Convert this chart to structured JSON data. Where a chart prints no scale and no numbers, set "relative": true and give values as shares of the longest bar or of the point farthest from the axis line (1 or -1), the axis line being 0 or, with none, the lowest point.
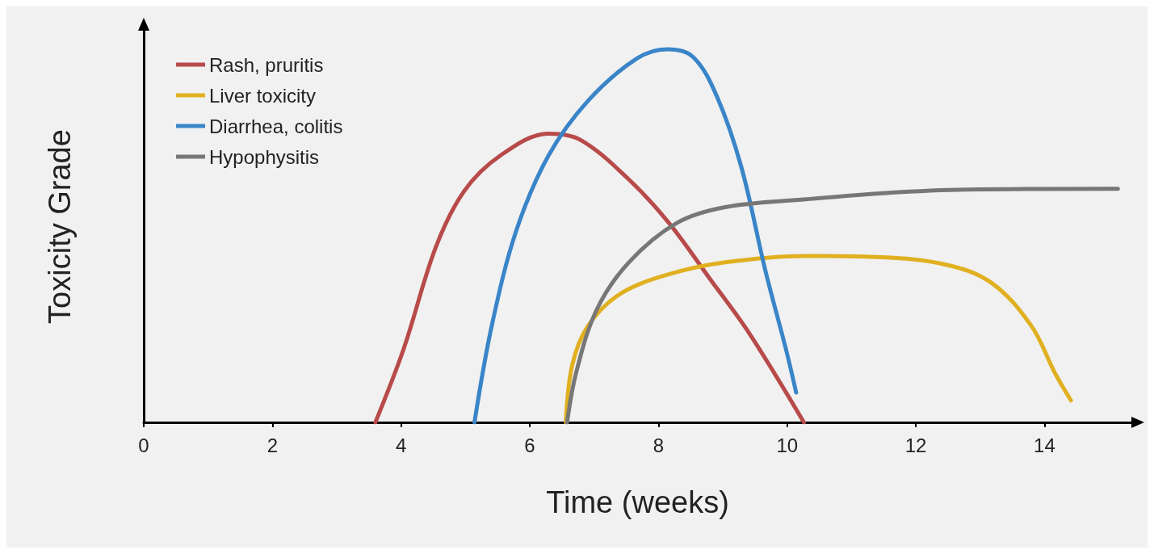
{
  "chart_data": {
    "type": "line",
    "relative": true,
    "xlabel": "Time (weeks)",
    "ylabel": "Toxicity Grade",
    "xlim": [
      0,
      15.35
    ],
    "xticks": [
      0,
      2,
      4,
      6,
      8,
      10,
      12,
      14
    ],
    "grid": false,
    "legend": "top left",
    "marker": "none",
    "line_style": "solid",
    "series": [
      {
        "name": "Rash, pruritis",
        "color": "#b84a4a",
        "x": [
          3.6,
          4.04,
          4.54,
          4.98,
          5.54,
          6.29,
          6.79,
          7.54,
          8.16,
          8.79,
          9.41,
          10.26
        ],
        "values": [
          0,
          0.197,
          0.47,
          0.62,
          0.715,
          0.774,
          0.757,
          0.651,
          0.535,
          0.387,
          0.239,
          0
        ]
      },
      {
        "name": "Liver toxicity",
        "color": "#e0b020",
        "x": [
          6.56,
          6.66,
          6.91,
          7.41,
          8.16,
          9.04,
          10.29,
          11.29,
          12.41,
          13.16,
          13.79,
          14.16,
          14.41
        ],
        "values": [
          0,
          0.154,
          0.26,
          0.345,
          0.397,
          0.429,
          0.446,
          0.444,
          0.425,
          0.376,
          0.26,
          0.133,
          0.059
        ]
      },
      {
        "name": "Diarrhea, colitis",
        "color": "#3a85c8",
        "x": [
          5.14,
          5.41,
          5.79,
          6.29,
          6.91,
          7.66,
          8.14,
          8.54,
          8.91,
          9.29,
          9.66,
          9.98,
          10.14
        ],
        "values": [
          0,
          0.26,
          0.514,
          0.715,
          0.863,
          0.975,
          1,
          0.979,
          0.873,
          0.683,
          0.408,
          0.197,
          0.08
        ]
      },
      {
        "name": "Hypophysitis",
        "color": "#777777",
        "x": [
          6.58,
          6.72,
          7.04,
          7.54,
          8.29,
          9.04,
          10.29,
          11.54,
          12.79,
          15.14
        ],
        "values": [
          0,
          0.133,
          0.302,
          0.429,
          0.535,
          0.577,
          0.598,
          0.615,
          0.624,
          0.626
        ]
      }
    ]
  }
}
